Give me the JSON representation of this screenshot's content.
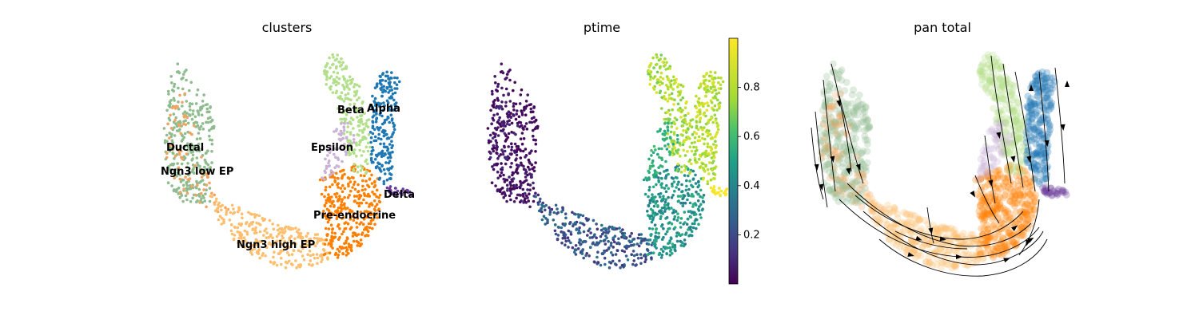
{
  "chart_data": [
    {
      "type": "scatter",
      "title": "clusters",
      "legend": "on data",
      "clusters": [
        {
          "name": "Ductal",
          "color": "#8fbc8f"
        },
        {
          "name": "Ngn3 low EP",
          "color": "#f4a460"
        },
        {
          "name": "Ngn3 high EP",
          "color": "#fdbf6f"
        },
        {
          "name": "Pre-endocrine",
          "color": "#ff7f00"
        },
        {
          "name": "Beta",
          "color": "#b2df8a"
        },
        {
          "name": "Alpha",
          "color": "#1f78b4"
        },
        {
          "name": "Delta",
          "color": "#6a3d9a"
        },
        {
          "name": "Epsilon",
          "color": "#cab2d6"
        }
      ]
    },
    {
      "type": "scatter",
      "title": "ptime",
      "colormap": "viridis",
      "colorbar_ticks": [
        "0.2",
        "0.4",
        "0.6",
        "0.8"
      ],
      "colorbar_tick_values": [
        0.2,
        0.4,
        0.6,
        0.8
      ],
      "colorbar_range": [
        0.0,
        1.0
      ]
    },
    {
      "type": "scatter",
      "title": "pan total",
      "overlay": "velocity streamlines with arrows",
      "streamline_color": "#000000"
    }
  ]
}
